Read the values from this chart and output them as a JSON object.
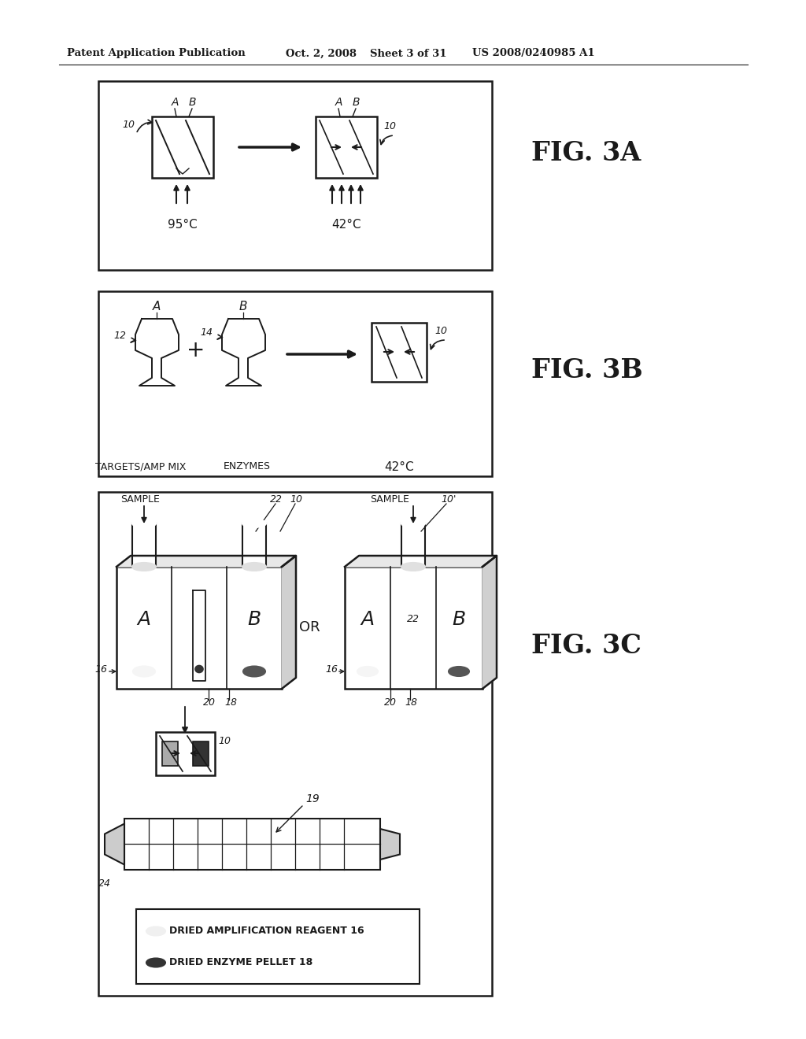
{
  "bg_color": "#ffffff",
  "header_text": "Patent Application Publication",
  "header_date": "Oct. 2, 2008",
  "header_sheet": "Sheet 3 of 31",
  "header_patent": "US 2008/0240985 A1",
  "fig3a_label": "FIG. 3A",
  "fig3b_label": "FIG. 3B",
  "fig3c_label": "FIG. 3C",
  "text_color": "#1a1a1a"
}
